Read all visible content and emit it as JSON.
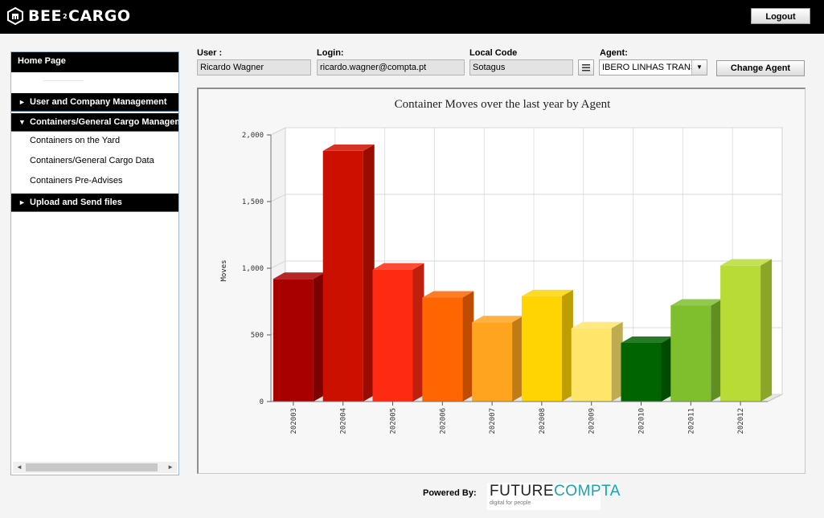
{
  "header": {
    "logo_text": "BEE",
    "logo_small": "2",
    "logo_text2": "CARGO",
    "logout_label": "Logout"
  },
  "sidebar": {
    "home": "Home Page",
    "menus": [
      {
        "label": "User and Company Management",
        "expanded": false
      },
      {
        "label": "Containers/General Cargo Management",
        "expanded": true
      },
      {
        "label": "Upload and Send files",
        "expanded": false
      }
    ],
    "sub_items": [
      "Containers on the Yard",
      "Containers/General Cargo Data",
      "Containers Pre-Advises"
    ],
    "arrow_collapsed": "►",
    "arrow_expanded": "▼"
  },
  "fields": {
    "user": {
      "label": "User :",
      "value": "Ricardo Wagner"
    },
    "login": {
      "label": "Login:",
      "value": "ricardo.wagner@compta.pt"
    },
    "local_code": {
      "label": "Local Code",
      "value": "Sotagus"
    },
    "agent": {
      "label": "Agent:",
      "value": "IBERO LINHAS TRANSPORTES"
    }
  },
  "change_agent_label": "Change Agent",
  "chart_data": {
    "type": "bar",
    "title": "Container Moves over the last year by Agent",
    "ylabel": "Moves",
    "xlabel": "",
    "ylim": [
      0,
      2000
    ],
    "yticks": [
      0,
      500,
      1000,
      1500,
      2000
    ],
    "ytick_labels": [
      "0",
      "500",
      "1,000",
      "1,500",
      "2,000"
    ],
    "grid": true,
    "categories": [
      "202003",
      "202004",
      "202005",
      "202006",
      "202007",
      "202008",
      "202009",
      "202010",
      "202011",
      "202012"
    ],
    "values": [
      920,
      1880,
      990,
      780,
      595,
      790,
      550,
      440,
      720,
      1020
    ],
    "colors": [
      "#a80000",
      "#cc1000",
      "#ff2a12",
      "#ff6500",
      "#ffa41e",
      "#ffd400",
      "#ffe56a",
      "#006400",
      "#7fbf2e",
      "#b8dc35"
    ]
  },
  "footer": {
    "powered_by": "Powered By:",
    "logo_part1": "FUTURE",
    "logo_part2": "COMPTA",
    "tagline": "digital for people"
  }
}
